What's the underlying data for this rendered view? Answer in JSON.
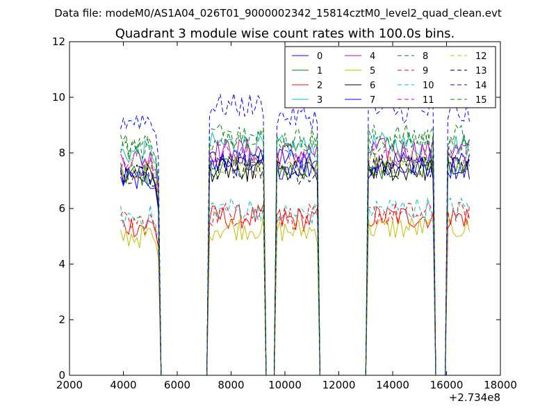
{
  "chart_data": {
    "type": "line",
    "subtitle": "Data file: modeM0/AS1A04_026T01_9000002342_15814cztM0_level2_quad_clean.evt",
    "title": "Quadrant 3 module wise count rates with 100.0s bins.",
    "xlabel": "",
    "ylabel": "",
    "x_offset_label": "+2.734e8",
    "xlim": [
      2000,
      18000
    ],
    "ylim": [
      0,
      12
    ],
    "x_ticks": [
      "2000",
      "4000",
      "6000",
      "8000",
      "10000",
      "12000",
      "14000",
      "16000",
      "18000"
    ],
    "y_ticks": [
      "0",
      "2",
      "4",
      "6",
      "8",
      "10",
      "12"
    ],
    "legend": {
      "placement": "top-right",
      "columns": 4
    },
    "segments": [
      [
        3900,
        5400
      ],
      [
        7100,
        9300
      ],
      [
        9600,
        11300
      ],
      [
        13000,
        15600
      ],
      [
        15950,
        16900
      ]
    ],
    "gaps_zero": [
      [
        5400,
        7100
      ],
      [
        9300,
        9600
      ],
      [
        11300,
        13000
      ],
      [
        15600,
        15950
      ]
    ],
    "series": [
      {
        "name": "0",
        "color": "#0000ff",
        "style": "solid",
        "levels": [
          7.0,
          7.7,
          7.8,
          7.7,
          7.7
        ]
      },
      {
        "name": "1",
        "color": "#008000",
        "style": "solid",
        "levels": [
          7.2,
          7.5,
          7.4,
          7.5,
          7.5
        ]
      },
      {
        "name": "2",
        "color": "#ff0000",
        "style": "solid",
        "levels": [
          5.4,
          5.7,
          5.6,
          5.7,
          5.7
        ]
      },
      {
        "name": "3",
        "color": "#00bfbf",
        "style": "solid",
        "levels": [
          8.0,
          8.3,
          8.2,
          8.3,
          8.3
        ]
      },
      {
        "name": "4",
        "color": "#bf00bf",
        "style": "solid",
        "levels": [
          7.8,
          8.1,
          8.0,
          8.1,
          8.1
        ]
      },
      {
        "name": "5",
        "color": "#bfbf00",
        "style": "solid",
        "levels": [
          5.0,
          5.3,
          5.2,
          5.3,
          5.3
        ]
      },
      {
        "name": "6",
        "color": "#000000",
        "style": "solid",
        "levels": [
          7.2,
          7.4,
          7.3,
          7.4,
          7.4
        ]
      },
      {
        "name": "7",
        "color": "#0000ff",
        "style": "solid",
        "levels": [
          7.1,
          7.6,
          7.5,
          7.5,
          7.5
        ]
      },
      {
        "name": "8",
        "color": "#008000",
        "style": "dashed",
        "levels": [
          8.3,
          8.7,
          8.5,
          8.6,
          8.6
        ]
      },
      {
        "name": "9",
        "color": "#ff0000",
        "style": "dashed",
        "levels": [
          5.5,
          5.8,
          5.7,
          5.8,
          5.8
        ]
      },
      {
        "name": "10",
        "color": "#00bfbf",
        "style": "dashed",
        "levels": [
          5.7,
          6.0,
          5.8,
          6.0,
          6.0
        ]
      },
      {
        "name": "11",
        "color": "#bf00bf",
        "style": "dashed",
        "levels": [
          7.5,
          7.9,
          7.7,
          7.8,
          7.8
        ]
      },
      {
        "name": "12",
        "color": "#bfbf00",
        "style": "dashed",
        "levels": [
          7.4,
          7.7,
          7.6,
          7.7,
          7.7
        ]
      },
      {
        "name": "13",
        "color": "#000000",
        "style": "dashed",
        "levels": [
          7.2,
          7.5,
          7.3,
          7.5,
          7.5
        ]
      },
      {
        "name": "14",
        "color": "#0000ff",
        "style": "dashed",
        "levels": [
          9.2,
          9.7,
          9.3,
          9.5,
          9.4
        ]
      },
      {
        "name": "15",
        "color": "#008000",
        "style": "dashed",
        "levels": [
          8.2,
          8.5,
          8.3,
          8.4,
          8.4
        ]
      }
    ]
  }
}
